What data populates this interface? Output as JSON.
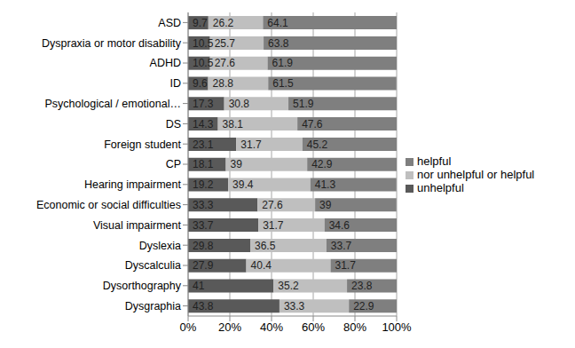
{
  "chart_data": {
    "type": "bar",
    "orientation": "horizontal",
    "stacked": true,
    "data_labels": true,
    "grid": true,
    "legend": "right",
    "categories": [
      "ASD",
      "Dyspraxia or motor disability",
      "ADHD",
      "ID",
      "Psychological / emotional…",
      "DS",
      "Foreign student",
      "CP",
      "Hearing impairment",
      "Economic or social difficulties",
      "Visual impairment",
      "Dyslexia",
      "Dyscalculia",
      "Dysorthography",
      "Dysgraphia"
    ],
    "series": [
      {
        "name": "unhelpful",
        "color": "#595959",
        "values": [
          9.7,
          10.5,
          10.5,
          9.6,
          17.3,
          14.3,
          23.1,
          18.1,
          19.2,
          33.3,
          33.7,
          29.8,
          27.9,
          41,
          43.8
        ]
      },
      {
        "name": "nor unhelpful or helpful",
        "color": "#bfbfbf",
        "values": [
          26.2,
          25.7,
          27.6,
          28.8,
          30.8,
          38.1,
          31.7,
          39,
          39.4,
          27.6,
          31.7,
          36.5,
          40.4,
          35.2,
          33.3
        ]
      },
      {
        "name": "helpful",
        "color": "#7f7f7f",
        "values": [
          64.1,
          63.8,
          61.9,
          61.5,
          51.9,
          47.6,
          45.2,
          42.9,
          41.3,
          39,
          34.6,
          33.7,
          31.7,
          23.8,
          22.9
        ]
      }
    ],
    "xlim": [
      0,
      100
    ],
    "xticks": [
      {
        "value": 0,
        "label": "0%"
      },
      {
        "value": 20,
        "label": "20%"
      },
      {
        "value": 40,
        "label": "40%"
      },
      {
        "value": 60,
        "label": "60%"
      },
      {
        "value": 80,
        "label": "80%"
      },
      {
        "value": 100,
        "label": "100%"
      }
    ]
  }
}
